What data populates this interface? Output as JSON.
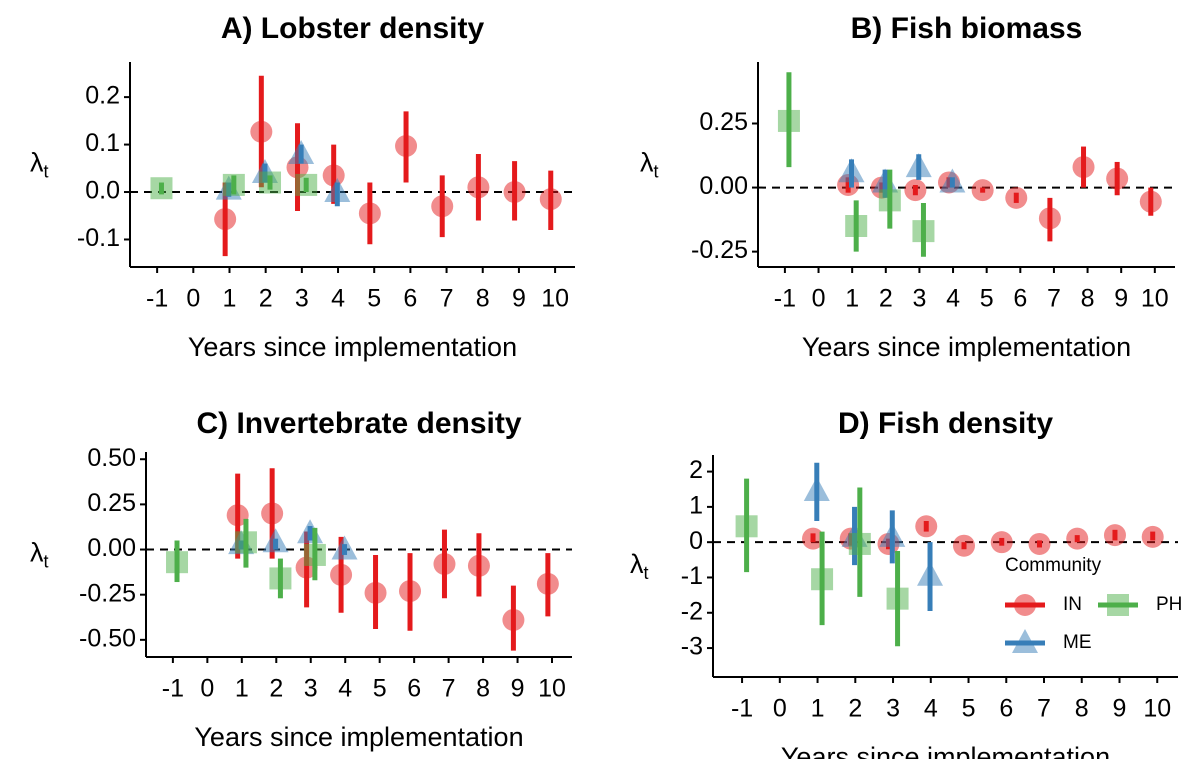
{
  "chart_data": [
    {
      "type": "errorbar",
      "title": "A) Lobster density",
      "xlabel": "Years since implementation",
      "ylabel": "λt",
      "xlim": [
        -1.75,
        10.55
      ],
      "xticks": [
        -1,
        0,
        1,
        2,
        3,
        4,
        5,
        6,
        7,
        8,
        9,
        10
      ],
      "ylim": [
        -0.158,
        0.274
      ],
      "yticks": [
        -0.1,
        {
          "value": 0,
          "label": "0.0"
        },
        0.1,
        0.2
      ],
      "reference_line": 0,
      "legend": false,
      "series": [
        {
          "name": "IN",
          "color": "#e41a1c",
          "shape": "circle",
          "x": [
            1,
            2,
            3,
            4,
            5,
            6,
            7,
            8,
            9,
            10
          ],
          "values": [
            -0.057,
            0.127,
            0.052,
            0.035,
            -0.045,
            0.097,
            -0.03,
            0.01,
            0.0,
            -0.015
          ],
          "lower": [
            -0.135,
            0.01,
            -0.04,
            -0.025,
            -0.11,
            0.02,
            -0.095,
            -0.06,
            -0.06,
            -0.08
          ],
          "upper": [
            0.02,
            0.245,
            0.145,
            0.1,
            0.02,
            0.17,
            0.035,
            0.08,
            0.065,
            0.045
          ]
        },
        {
          "name": "ME",
          "color": "#377eb8",
          "shape": "triangle",
          "x": [
            1,
            2,
            3,
            4
          ],
          "values": [
            0.005,
            0.04,
            0.08,
            0.0
          ],
          "lower": [
            -0.01,
            0.02,
            0.06,
            -0.03
          ],
          "upper": [
            0.02,
            0.06,
            0.1,
            0.02
          ]
        },
        {
          "name": "PH",
          "color": "#4daf4a",
          "shape": "square",
          "x": [
            -1,
            1,
            2,
            3
          ],
          "values": [
            0.008,
            0.015,
            0.02,
            0.015
          ],
          "lower": [
            -0.005,
            -0.005,
            0.005,
            0.0
          ],
          "upper": [
            0.02,
            0.035,
            0.035,
            0.03
          ]
        }
      ]
    },
    {
      "type": "errorbar",
      "title": "B) Fish biomass",
      "xlabel": "Years since implementation",
      "ylabel": "λt",
      "xlim": [
        -1.8,
        10.6
      ],
      "xticks": [
        -1,
        0,
        1,
        2,
        3,
        4,
        5,
        6,
        7,
        8,
        9,
        10
      ],
      "ylim": [
        -0.31,
        0.49
      ],
      "yticks": [
        -0.25,
        {
          "value": 0,
          "label": "0.00"
        },
        0.25
      ],
      "reference_line": 0,
      "legend": false,
      "series": [
        {
          "name": "IN",
          "color": "#e41a1c",
          "shape": "circle",
          "x": [
            1,
            2,
            3,
            4,
            5,
            6,
            7,
            8,
            9,
            10
          ],
          "values": [
            0.01,
            0.0,
            -0.01,
            0.02,
            -0.01,
            -0.04,
            -0.12,
            0.08,
            0.035,
            -0.055
          ],
          "lower": [
            -0.02,
            -0.02,
            -0.03,
            0.0,
            -0.02,
            -0.06,
            -0.21,
            0.0,
            -0.03,
            -0.11
          ],
          "upper": [
            0.04,
            0.02,
            0.01,
            0.04,
            0.0,
            -0.02,
            -0.04,
            0.16,
            0.1,
            0.0
          ]
        },
        {
          "name": "ME",
          "color": "#377eb8",
          "shape": "triangle",
          "x": [
            1,
            2,
            3,
            4
          ],
          "values": [
            0.06,
            0.02,
            0.08,
            0.02
          ],
          "lower": [
            0.0,
            -0.04,
            0.03,
            0.0
          ],
          "upper": [
            0.11,
            0.07,
            0.13,
            0.04
          ]
        },
        {
          "name": "PH",
          "color": "#4daf4a",
          "shape": "square",
          "x": [
            -1,
            1,
            2,
            3
          ],
          "values": [
            0.26,
            -0.15,
            -0.05,
            -0.17
          ],
          "lower": [
            0.08,
            -0.25,
            -0.16,
            -0.27
          ],
          "upper": [
            0.45,
            -0.05,
            0.07,
            -0.06
          ]
        }
      ]
    },
    {
      "type": "errorbar",
      "title": "C) Invertebrate density",
      "xlabel": "Years since implementation",
      "ylabel": "λt",
      "xlim": [
        -1.78,
        10.58
      ],
      "xticks": [
        -1,
        0,
        1,
        2,
        3,
        4,
        5,
        6,
        7,
        8,
        9,
        10
      ],
      "ylim": [
        -0.595,
        0.54
      ],
      "yticks": [
        {
          "value": -0.5,
          "label": "-0.50"
        },
        -0.25,
        {
          "value": 0,
          "label": "0.00"
        },
        0.25,
        {
          "value": 0.5,
          "label": "0.50"
        }
      ],
      "reference_line": 0,
      "legend": false,
      "series": [
        {
          "name": "IN",
          "color": "#e41a1c",
          "shape": "circle",
          "x": [
            1,
            2,
            3,
            4,
            5,
            6,
            7,
            8,
            9,
            10
          ],
          "values": [
            0.19,
            0.2,
            -0.1,
            -0.14,
            -0.24,
            -0.23,
            -0.08,
            -0.09,
            -0.39,
            -0.19
          ],
          "lower": [
            -0.05,
            -0.05,
            -0.32,
            -0.35,
            -0.44,
            -0.45,
            -0.27,
            -0.26,
            -0.56,
            -0.37
          ],
          "upper": [
            0.42,
            0.45,
            0.1,
            0.07,
            -0.03,
            -0.02,
            0.11,
            0.09,
            -0.2,
            -0.02
          ]
        },
        {
          "name": "ME",
          "color": "#377eb8",
          "shape": "triangle",
          "x": [
            1,
            2,
            3,
            4
          ],
          "values": [
            0.03,
            0.04,
            0.09,
            0.0
          ],
          "lower": [
            0.0,
            0.0,
            0.05,
            -0.03
          ],
          "upper": [
            0.05,
            0.06,
            0.13,
            0.03
          ]
        },
        {
          "name": "PH",
          "color": "#4daf4a",
          "shape": "square",
          "x": [
            -1,
            1,
            2,
            3
          ],
          "values": [
            -0.07,
            0.04,
            -0.16,
            -0.03
          ],
          "lower": [
            -0.18,
            -0.1,
            -0.27,
            -0.17
          ],
          "upper": [
            0.05,
            0.17,
            -0.05,
            0.12
          ]
        }
      ]
    },
    {
      "type": "errorbar",
      "title": "D) Fish density",
      "xlabel": "Years since implementation",
      "ylabel": "λt",
      "xlim": [
        -1.77,
        10.55
      ],
      "xticks": [
        -1,
        0,
        1,
        2,
        3,
        4,
        5,
        6,
        7,
        8,
        9,
        10
      ],
      "ylim": [
        -3.82,
        2.47
      ],
      "yticks": [
        -3,
        -2,
        -1,
        0,
        1,
        2
      ],
      "reference_line": 0,
      "legend": true,
      "legend_title": "Community",
      "series": [
        {
          "name": "IN",
          "color": "#e41a1c",
          "shape": "circle",
          "x": [
            1,
            2,
            3,
            4,
            5,
            6,
            7,
            8,
            9,
            10
          ],
          "values": [
            0.1,
            0.1,
            -0.05,
            0.45,
            -0.1,
            0.0,
            -0.05,
            0.1,
            0.2,
            0.15
          ],
          "lower": [
            0.0,
            -0.1,
            -0.2,
            0.3,
            -0.2,
            -0.1,
            -0.15,
            0.0,
            0.05,
            0.05
          ],
          "upper": [
            0.25,
            0.25,
            0.1,
            0.6,
            0.0,
            0.12,
            0.05,
            0.2,
            0.35,
            0.3
          ]
        },
        {
          "name": "ME",
          "color": "#377eb8",
          "shape": "triangle",
          "x": [
            1,
            2,
            3,
            4
          ],
          "values": [
            1.45,
            0.15,
            0.15,
            -0.95
          ],
          "lower": [
            0.6,
            -0.65,
            -0.6,
            -1.95
          ],
          "upper": [
            2.25,
            1.0,
            0.9,
            0.0
          ]
        },
        {
          "name": "PH",
          "color": "#4daf4a",
          "shape": "square",
          "x": [
            -1,
            1,
            2,
            3
          ],
          "values": [
            0.45,
            -1.05,
            -0.05,
            -1.6
          ],
          "lower": [
            -0.85,
            -2.35,
            -1.55,
            -2.95
          ],
          "upper": [
            1.8,
            0.3,
            1.55,
            -0.25
          ]
        }
      ]
    }
  ]
}
